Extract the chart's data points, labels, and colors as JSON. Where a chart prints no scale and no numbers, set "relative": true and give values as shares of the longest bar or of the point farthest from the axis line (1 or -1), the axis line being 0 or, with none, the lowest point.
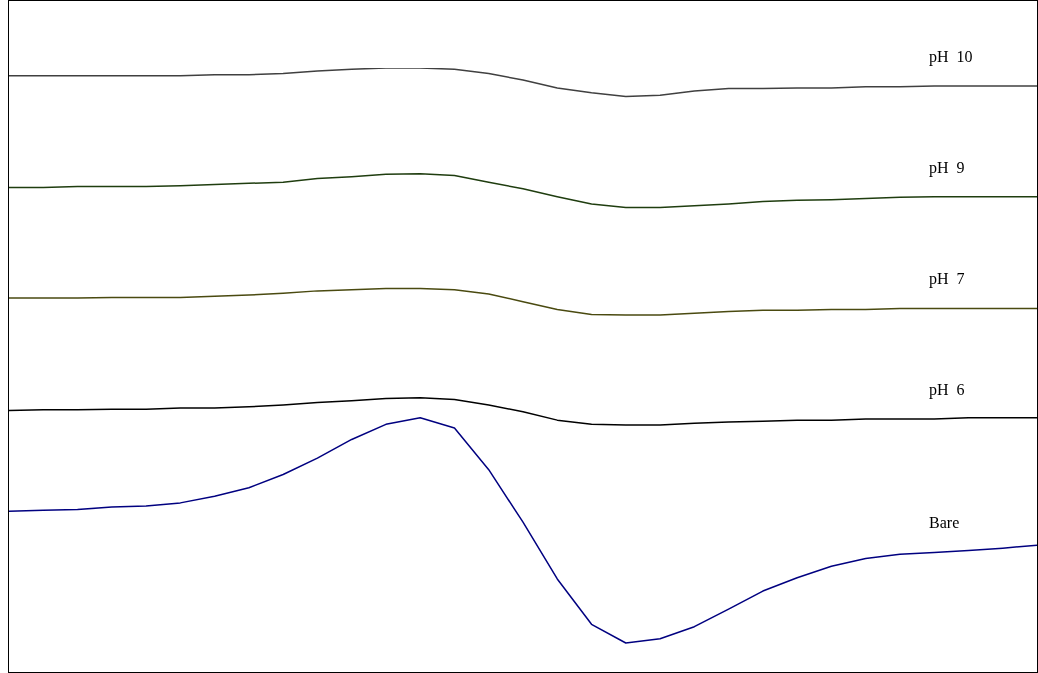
{
  "chart_data": {
    "type": "line",
    "relative": true,
    "legend": false,
    "grid": false,
    "marker": "none",
    "line_style": "solid",
    "categories": [
      null,
      null,
      null,
      null,
      null,
      null,
      null,
      null,
      null,
      null,
      null,
      null,
      null,
      null,
      null,
      null,
      null,
      null,
      null,
      null,
      null,
      null,
      null,
      null,
      null,
      null,
      null,
      null,
      null,
      null,
      null
    ],
    "series": [
      {
        "name": "pH  10",
        "color": "#404040",
        "values": [
          0.987,
          0.987,
          0.987,
          0.987,
          0.987,
          0.987,
          0.989,
          0.989,
          0.991,
          0.995,
          0.998,
          1,
          1,
          0.998,
          0.991,
          0.98,
          0.967,
          0.959,
          0.953,
          0.955,
          0.962,
          0.966,
          0.966,
          0.967,
          0.967,
          0.969,
          0.969,
          0.97,
          0.97,
          0.97,
          0.97
        ]
      },
      {
        "name": "pH  9",
        "color": "#1f3d0f",
        "values": [
          0.802,
          0.802,
          0.804,
          0.804,
          0.804,
          0.805,
          0.807,
          0.809,
          0.811,
          0.817,
          0.82,
          0.824,
          0.825,
          0.822,
          0.811,
          0.8,
          0.787,
          0.775,
          0.769,
          0.769,
          0.772,
          0.775,
          0.779,
          0.781,
          0.782,
          0.784,
          0.786,
          0.787,
          0.787,
          0.787,
          0.787
        ]
      },
      {
        "name": "pH  7",
        "color": "#4a4a10",
        "values": [
          0.619,
          0.619,
          0.619,
          0.62,
          0.62,
          0.62,
          0.622,
          0.624,
          0.627,
          0.631,
          0.633,
          0.635,
          0.635,
          0.633,
          0.626,
          0.613,
          0.6,
          0.592,
          0.591,
          0.591,
          0.594,
          0.597,
          0.599,
          0.599,
          0.6,
          0.6,
          0.602,
          0.602,
          0.602,
          0.602,
          0.602
        ]
      },
      {
        "name": "pH  6",
        "color": "#000000",
        "values": [
          0.433,
          0.434,
          0.434,
          0.435,
          0.435,
          0.437,
          0.437,
          0.439,
          0.442,
          0.446,
          0.449,
          0.453,
          0.454,
          0.451,
          0.442,
          0.431,
          0.417,
          0.41,
          0.409,
          0.409,
          0.412,
          0.414,
          0.415,
          0.417,
          0.417,
          0.419,
          0.419,
          0.419,
          0.421,
          0.421,
          0.421
        ]
      },
      {
        "name": "Bare",
        "color": "#000080",
        "values": [
          0.266,
          0.268,
          0.269,
          0.273,
          0.275,
          0.28,
          0.291,
          0.305,
          0.327,
          0.354,
          0.385,
          0.41,
          0.421,
          0.404,
          0.335,
          0.248,
          0.154,
          0.079,
          0.048,
          0.055,
          0.075,
          0.104,
          0.134,
          0.156,
          0.175,
          0.188,
          0.195,
          0.198,
          0.201,
          0.205,
          0.21
        ]
      }
    ]
  }
}
